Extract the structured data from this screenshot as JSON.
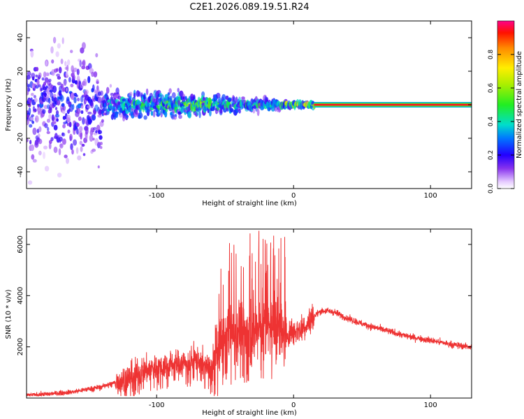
{
  "title": "C2E1.2026.089.19.51.R24",
  "chart_data": [
    {
      "type": "heatmap",
      "xlabel": "Height of straight line (km)",
      "ylabel": "Frequency (Hz)",
      "xlim": [
        -195,
        130
      ],
      "ylim": [
        -50,
        50
      ],
      "xticks": [
        -100,
        0,
        100
      ],
      "yticks": [
        -40,
        -20,
        0,
        20,
        40
      ],
      "grid": false,
      "colorbar": {
        "label": "Normalized spectral amplitude",
        "range": [
          0,
          1
        ],
        "ticks": [
          0.0,
          0.2,
          0.4,
          0.6,
          0.8
        ]
      },
      "annotations": [
        {
          "x_from": 15,
          "x_to": 130,
          "freq": 0,
          "amplitude": 0.95,
          "note": "narrow carrier line near 0 Hz"
        },
        {
          "x_from": -195,
          "x_to": -140,
          "freq_spread": 50,
          "amplitude": 0.3,
          "note": "broad scattered noise"
        }
      ]
    },
    {
      "type": "line",
      "xlabel": "Height of straight line (km)",
      "ylabel": "SNR (10 * v/v)",
      "xlim": [
        -195,
        130
      ],
      "ylim": [
        0,
        6600
      ],
      "xticks": [
        -100,
        0,
        100
      ],
      "yticks": [
        2000,
        4000,
        6000
      ],
      "series": [
        {
          "name": "SNR",
          "color": "#ee3333",
          "x": [
            -195,
            -180,
            -160,
            -140,
            -125,
            -110,
            -100,
            -90,
            -80,
            -70,
            -60,
            -55,
            -50,
            -45,
            -40,
            -35,
            -30,
            -25,
            -20,
            -15,
            -10,
            -5,
            0,
            5,
            10,
            15,
            20,
            25,
            30,
            40,
            50,
            60,
            70,
            80,
            90,
            100,
            110,
            120,
            130
          ],
          "y": [
            100,
            150,
            250,
            450,
            700,
            1050,
            1200,
            1300,
            1350,
            1500,
            1050,
            1900,
            2300,
            2600,
            2700,
            2500,
            2600,
            2700,
            2700,
            2800,
            2600,
            2500,
            2600,
            2700,
            2900,
            3200,
            3400,
            3400,
            3350,
            3100,
            2900,
            2750,
            2600,
            2450,
            2350,
            2250,
            2150,
            2050,
            2000
          ]
        }
      ]
    }
  ]
}
